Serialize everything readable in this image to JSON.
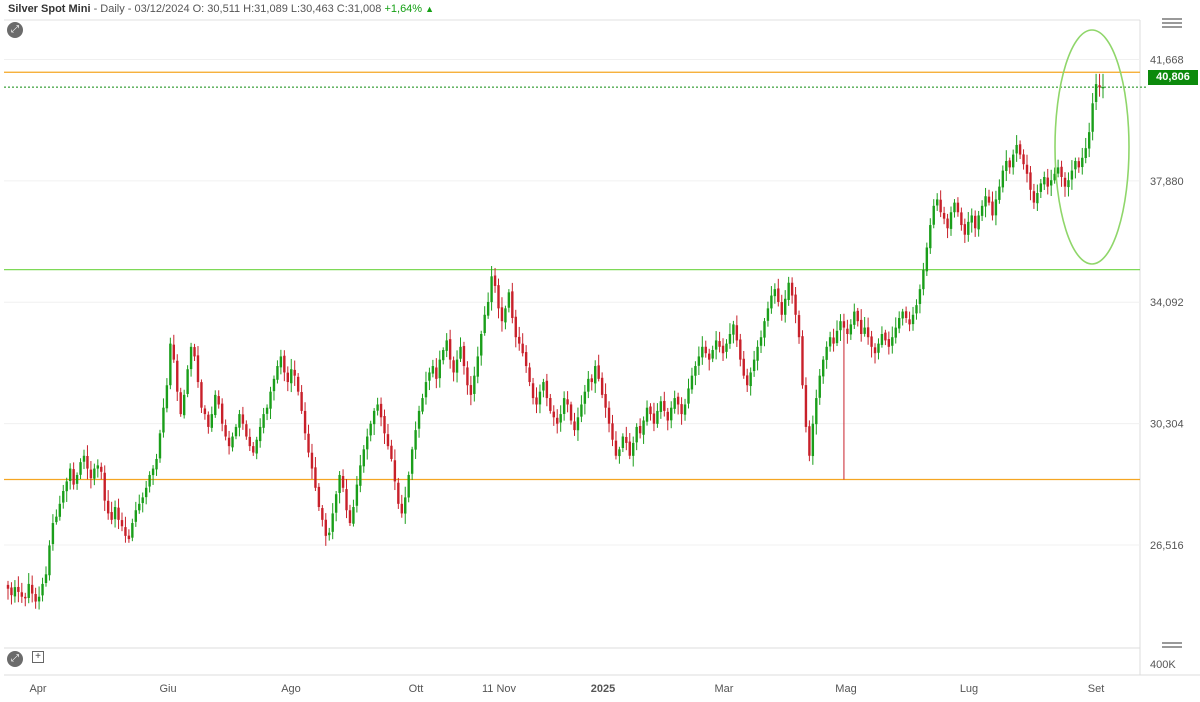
{
  "header": {
    "symbol": "Silver Spot Mini",
    "info": " - Daily - 03/12/2024 O: 30,511 H:31,089 L:30,463 C:31,008 ",
    "change": "+1,64%",
    "arrow": "▲"
  },
  "icons": {
    "top": "expand-icon",
    "bottom": "expand-icon",
    "plus": "+"
  },
  "colors": {
    "up": "#1a9e1a",
    "down": "#c8202a",
    "support": "#f5a623",
    "trend": "#7ed957",
    "ellipse": "#8fd66a"
  },
  "chart_data": {
    "type": "candlestick",
    "ylim": [
      23300,
      42900
    ],
    "y_ticks": [
      26516,
      30304,
      34092,
      37880,
      41668
    ],
    "y_tick_labels": [
      "26,516",
      "30,304",
      "34,092",
      "37,880",
      "41,668"
    ],
    "x_labels": [
      "Apr",
      "Giu",
      "Ago",
      "Ott",
      "11 Nov",
      "2025",
      "Mar",
      "Mag",
      "Lug",
      "Set"
    ],
    "current_price": 40806,
    "current_price_label": "40,806",
    "volume_label": "400K",
    "horizontal_lines": [
      {
        "value": 41270,
        "color": "orange"
      },
      {
        "value": 35110,
        "color": "green"
      },
      {
        "value": 28560,
        "color": "orange"
      }
    ],
    "closes": [
      25150,
      24950,
      25200,
      25050,
      24900,
      24850,
      25300,
      25000,
      24750,
      24900,
      25300,
      25600,
      26500,
      27200,
      27400,
      27800,
      28200,
      28500,
      28900,
      28400,
      28700,
      29100,
      29300,
      28900,
      28600,
      28900,
      29000,
      28800,
      27900,
      27500,
      27300,
      27700,
      27300,
      27100,
      26800,
      26700,
      27200,
      27600,
      27800,
      28000,
      28300,
      28700,
      28900,
      29200,
      30000,
      30800,
      31500,
      32800,
      32300,
      31300,
      30600,
      31200,
      32000,
      32700,
      32400,
      31600,
      30800,
      30600,
      30200,
      30600,
      31200,
      30900,
      30300,
      29900,
      29600,
      29900,
      30200,
      30600,
      30300,
      29900,
      29600,
      29400,
      29800,
      30200,
      30600,
      30800,
      31300,
      31700,
      32100,
      32400,
      31900,
      31600,
      32000,
      31800,
      31300,
      30700,
      30000,
      29400,
      28900,
      28300,
      27700,
      27300,
      26800,
      26900,
      27500,
      28100,
      28700,
      28300,
      27600,
      27200,
      27700,
      28400,
      29000,
      29500,
      29900,
      30300,
      30700,
      30900,
      30500,
      30000,
      29600,
      29200,
      28500,
      27800,
      27500,
      28000,
      28700,
      29500,
      30100,
      30700,
      31100,
      31600,
      31900,
      32100,
      31700,
      32300,
      32600,
      32900,
      32300,
      31900,
      32300,
      32700,
      32100,
      31500,
      31200,
      31800,
      32400,
      33100,
      33700,
      34100,
      34900,
      34600,
      33900,
      33500,
      33900,
      34400,
      33600,
      33000,
      32800,
      32500,
      32100,
      31600,
      31100,
      30900,
      31300,
      31600,
      31100,
      30700,
      30500,
      30300,
      30600,
      31100,
      30900,
      30400,
      30100,
      30500,
      30900,
      31300,
      31700,
      31600,
      32100,
      31700,
      31200,
      30800,
      30300,
      29800,
      29300,
      29500,
      29900,
      29700,
      29300,
      29700,
      30200,
      30000,
      30400,
      30800,
      30600,
      30300,
      30700,
      31000,
      30700,
      30400,
      30800,
      31100,
      30900,
      30600,
      30900,
      31400,
      31800,
      32100,
      32400,
      32700,
      32500,
      32300,
      32600,
      32900,
      32700,
      32500,
      32800,
      33100,
      33400,
      32900,
      32300,
      31800,
      31500,
      31900,
      32300,
      32700,
      33000,
      33500,
      33900,
      34300,
      34500,
      34100,
      33700,
      34200,
      34700,
      34300,
      33700,
      33000,
      31500,
      30200,
      29300,
      30300,
      31100,
      31800,
      32300,
      32700,
      33000,
      32800,
      33200,
      33500,
      33300,
      33100,
      33400,
      33800,
      33500,
      33100,
      33300,
      33000,
      32700,
      32500,
      32800,
      33100,
      32900,
      32700,
      33000,
      33300,
      33600,
      33800,
      33600,
      33400,
      33700,
      34000,
      34500,
      35100,
      35800,
      36500,
      37100,
      37300,
      36900,
      36700,
      36400,
      36900,
      37200,
      36900,
      36500,
      36200,
      36600,
      36800,
      36400,
      36800,
      37100,
      37400,
      37200,
      36800,
      37300,
      37700,
      38200,
      38500,
      38300,
      38700,
      39000,
      38700,
      38400,
      38100,
      37600,
      37200,
      37500,
      37800,
      38000,
      37700,
      37900,
      38100,
      38300,
      38000,
      37700,
      37900,
      38200,
      38500,
      38300,
      38600,
      38900,
      39400,
      40300,
      40900,
      40800,
      40806
    ]
  }
}
